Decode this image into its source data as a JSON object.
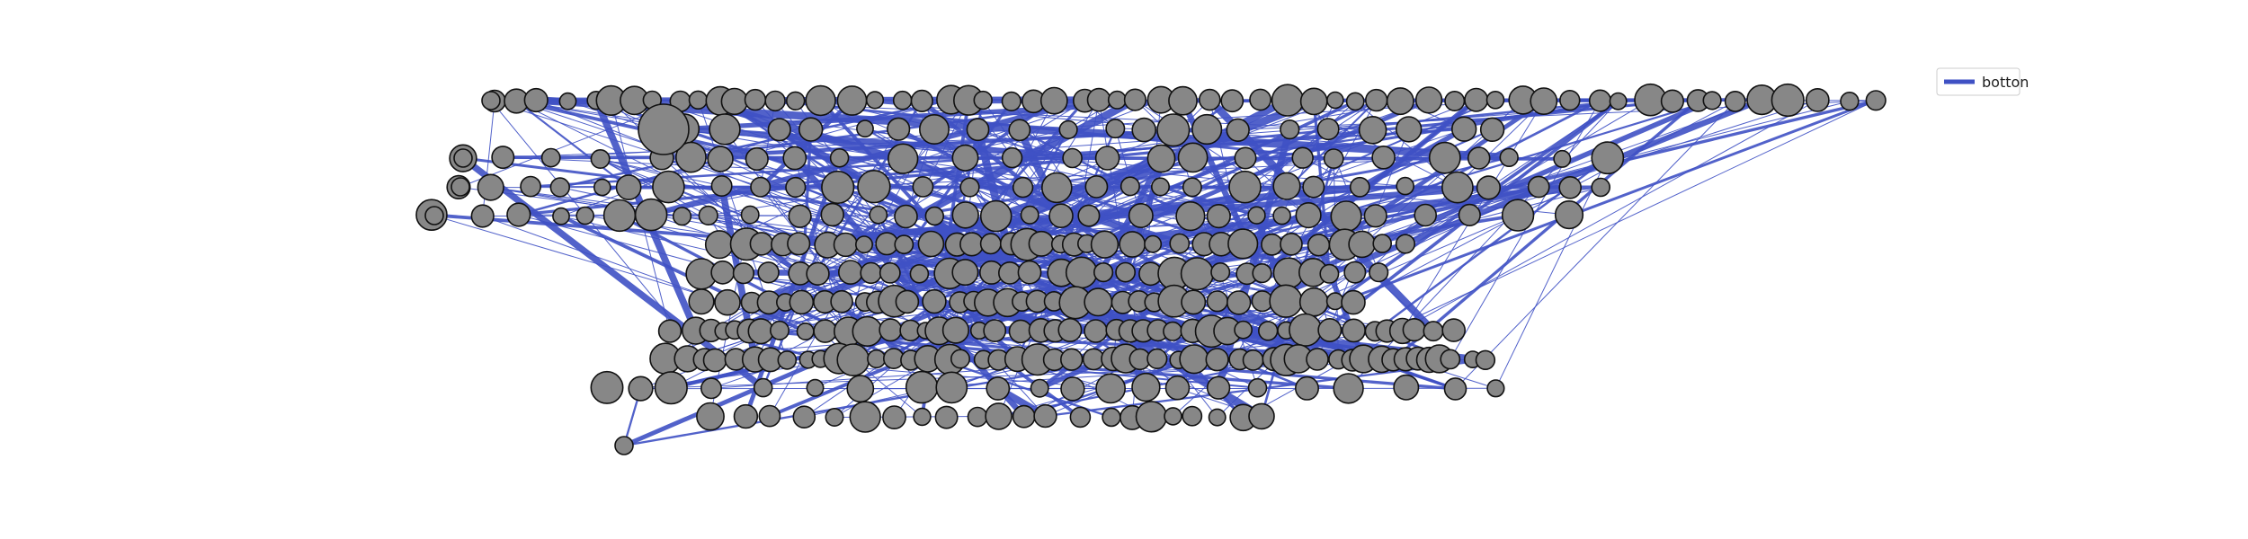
{
  "legend": {
    "label": "botton"
  },
  "colors": {
    "edge": "#3f51c4",
    "node_fill": "#878787",
    "node_stroke": "#111111"
  },
  "diagram": {
    "type": "network-graph",
    "rows": [
      {
        "nodes": 60,
        "cluster_size": 2,
        "has_hub": false
      },
      {
        "nodes": 22,
        "cluster_size": 3,
        "has_hub": true
      },
      {
        "nodes": 26,
        "cluster_size": 2,
        "has_hub": false
      },
      {
        "nodes": 30,
        "cluster_size": 2,
        "has_hub": false
      },
      {
        "nodes": 32,
        "cluster_size": 2,
        "has_hub": false
      },
      {
        "nodes": 34,
        "cluster_size": 2,
        "has_hub": false
      },
      {
        "nodes": 30,
        "cluster_size": 2,
        "has_hub": false
      },
      {
        "nodes": 34,
        "cluster_size": 2,
        "has_hub": false
      },
      {
        "nodes": 44,
        "cluster_size": 2,
        "has_hub": false
      },
      {
        "nodes": 50,
        "cluster_size": 2,
        "has_hub": false
      },
      {
        "nodes": 22,
        "cluster_size": 3,
        "has_hub": false
      },
      {
        "nodes": 22,
        "cluster_size": 2,
        "has_hub": false
      }
    ],
    "node_count": 406,
    "edge_count": 420
  }
}
